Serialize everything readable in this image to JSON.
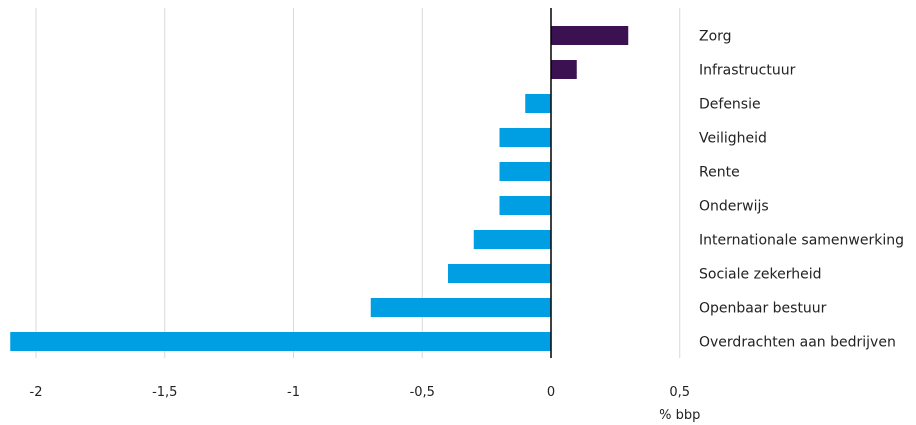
{
  "chart_data": {
    "type": "bar",
    "orientation": "horizontal",
    "categories": [
      "Zorg",
      "Infrastructuur",
      "Defensie",
      "Veiligheid",
      "Rente",
      "Onderwijs",
      "Internationale samenwerking",
      "Sociale zekerheid",
      "Openbaar bestuur",
      "Overdrachten aan bedrijven"
    ],
    "values": [
      0.3,
      0.1,
      -0.1,
      -0.2,
      -0.2,
      -0.2,
      -0.3,
      -0.4,
      -0.7,
      -2.1
    ],
    "colors": [
      "#3b1152",
      "#3b1152",
      "#009fe3",
      "#009fe3",
      "#009fe3",
      "#009fe3",
      "#009fe3",
      "#009fe3",
      "#009fe3",
      "#009fe3"
    ],
    "x_ticks": [
      -2,
      -1.5,
      -1,
      -0.5,
      0,
      0.5
    ],
    "x_tick_labels": [
      "-2",
      "-1,5",
      "-1",
      "-0,5",
      "0",
      "0,5"
    ],
    "xlim": [
      -2.1,
      0.5
    ],
    "xlabel": "% bbp",
    "grid": true
  }
}
